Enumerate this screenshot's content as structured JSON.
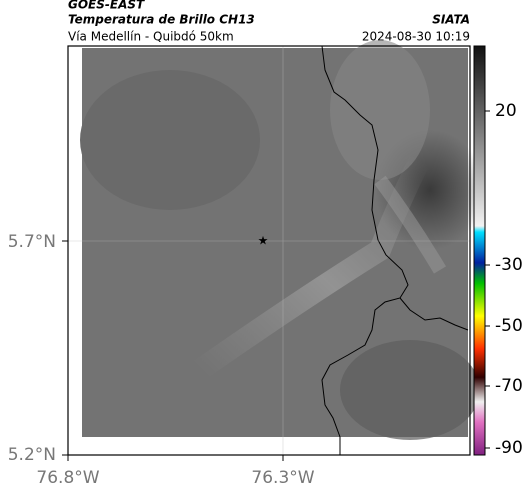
{
  "header": {
    "source": "GOES-EAST",
    "title": "Temperatura de Brillo CH13",
    "subtitle": "Vía Medellín - Quibdó 50km",
    "org": "SIATA",
    "datetime": "2024-08-30 10:19"
  },
  "map": {
    "lat_labels": [
      "5.7°N",
      "5.2°N"
    ],
    "lon_labels": [
      "76.8°W",
      "76.3°W"
    ]
  },
  "colorbar": {
    "labels": [
      "20",
      "-30",
      "-50",
      "-70",
      "-90"
    ]
  }
}
